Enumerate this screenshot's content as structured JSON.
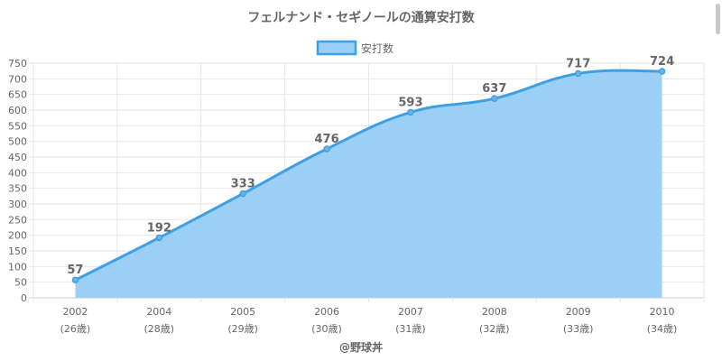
{
  "chart_data": {
    "type": "area",
    "title": "フェルナンド・セギノールの通算安打数",
    "legend": {
      "position": "top",
      "label": "安打数"
    },
    "categories": [
      {
        "year": "2002",
        "age": "(26歳)"
      },
      {
        "year": "2004",
        "age": "(28歳)"
      },
      {
        "year": "2005",
        "age": "(29歳)"
      },
      {
        "year": "2006",
        "age": "(30歳)"
      },
      {
        "year": "2007",
        "age": "(31歳)"
      },
      {
        "year": "2008",
        "age": "(32歳)"
      },
      {
        "year": "2009",
        "age": "(33歳)"
      },
      {
        "year": "2010",
        "age": "(34歳)"
      }
    ],
    "series": [
      {
        "name": "安打数",
        "values": [
          57,
          192,
          333,
          476,
          593,
          637,
          717,
          724
        ]
      }
    ],
    "ylim": [
      0,
      750
    ],
    "ytick_step": 50,
    "grid": true,
    "data_labels": true,
    "colors": {
      "line": "#3ea0e4",
      "fill": "#9ccff5",
      "grid": "#e6e6e6",
      "text": "#666666"
    },
    "credit": "@野球丼"
  }
}
